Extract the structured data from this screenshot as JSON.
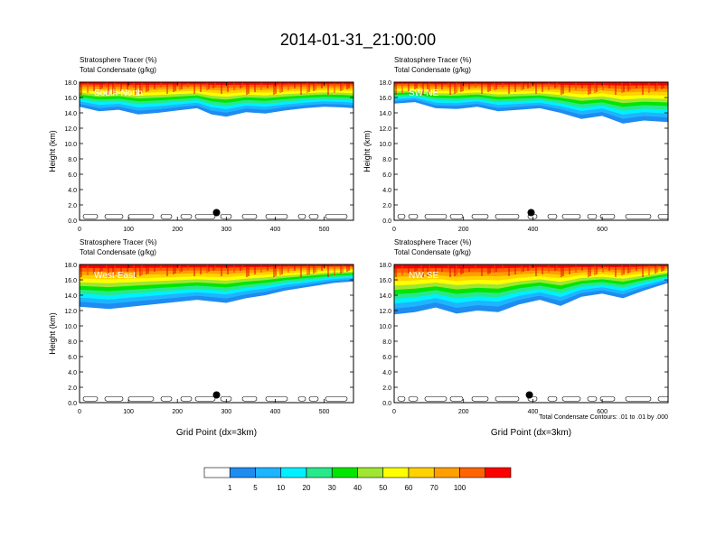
{
  "title": "2014-01-31_21:00:00",
  "footnote": "Total Condensate Contours: .01 to .01 by .000",
  "colorbar": {
    "colors": [
      "#ffffff",
      "#1e8cf0",
      "#1eb4ff",
      "#00f0ff",
      "#28e88c",
      "#00e600",
      "#a0e632",
      "#ffff00",
      "#ffd200",
      "#ffa000",
      "#ff6400",
      "#ff0000"
    ],
    "labels": [
      "1",
      "5",
      "10",
      "20",
      "30",
      "40",
      "50",
      "60",
      "70",
      "100"
    ]
  },
  "chart_data": [
    {
      "type": "heatmap",
      "subtitle1": "Stratosphere Tracer   (%)",
      "subtitle2": "Total Condensate   (g/kg)",
      "panel_label": "South-North",
      "xlabel": "",
      "ylabel": "Height (km)",
      "xlim": [
        0,
        560
      ],
      "ylim": [
        0,
        18
      ],
      "xticks": [
        0,
        100,
        200,
        300,
        400,
        500
      ],
      "yticks": [
        "0.0",
        "2.0",
        "4.0",
        "6.0",
        "8.0",
        "10.0",
        "12.0",
        "14.0",
        "16.0",
        "18.0"
      ],
      "marker": [
        280,
        1.0
      ],
      "tracer_base_km": [
        [
          0,
          14.8
        ],
        [
          40,
          14.2
        ],
        [
          80,
          14.4
        ],
        [
          120,
          13.8
        ],
        [
          160,
          14.0
        ],
        [
          200,
          14.3
        ],
        [
          240,
          14.6
        ],
        [
          270,
          13.8
        ],
        [
          300,
          13.5
        ],
        [
          340,
          14.1
        ],
        [
          380,
          13.9
        ],
        [
          420,
          14.3
        ],
        [
          460,
          14.6
        ],
        [
          500,
          14.8
        ],
        [
          540,
          14.7
        ],
        [
          560,
          14.6
        ]
      ]
    },
    {
      "type": "heatmap",
      "subtitle1": "Stratosphere Tracer   (%)",
      "subtitle2": "Total Condensate   (g/kg)",
      "panel_label": "SW-NE",
      "xlabel": "",
      "ylabel": "Height (km)",
      "xlim": [
        0,
        790
      ],
      "ylim": [
        0,
        18
      ],
      "xticks": [
        0,
        200,
        400,
        600
      ],
      "yticks": [
        "0.0",
        "2.0",
        "4.0",
        "6.0",
        "8.0",
        "10.0",
        "12.0",
        "14.0",
        "16.0",
        "18.0"
      ],
      "marker": [
        395,
        1.0
      ],
      "tracer_base_km": [
        [
          0,
          15.2
        ],
        [
          60,
          15.4
        ],
        [
          120,
          14.6
        ],
        [
          180,
          14.5
        ],
        [
          240,
          14.8
        ],
        [
          300,
          14.2
        ],
        [
          360,
          14.4
        ],
        [
          420,
          14.6
        ],
        [
          480,
          14.0
        ],
        [
          540,
          13.2
        ],
        [
          600,
          13.6
        ],
        [
          660,
          12.6
        ],
        [
          720,
          13.0
        ],
        [
          790,
          12.8
        ]
      ]
    },
    {
      "type": "heatmap",
      "subtitle1": "Stratosphere Tracer   (%)",
      "subtitle2": "Total Condensate   (g/kg)",
      "panel_label": "West-East",
      "xlabel": "Grid Point (dx=3km)",
      "ylabel": "Height (km)",
      "xlim": [
        0,
        560
      ],
      "ylim": [
        0,
        18
      ],
      "xticks": [
        0,
        100,
        200,
        300,
        400,
        500
      ],
      "yticks": [
        "0.0",
        "2.0",
        "4.0",
        "6.0",
        "8.0",
        "10.0",
        "12.0",
        "14.0",
        "16.0",
        "18.0"
      ],
      "marker": [
        280,
        1.0
      ],
      "tracer_base_km": [
        [
          0,
          12.5
        ],
        [
          60,
          12.2
        ],
        [
          120,
          12.6
        ],
        [
          180,
          13.0
        ],
        [
          240,
          13.4
        ],
        [
          300,
          13.0
        ],
        [
          340,
          13.6
        ],
        [
          380,
          14.0
        ],
        [
          420,
          14.6
        ],
        [
          480,
          15.2
        ],
        [
          520,
          15.6
        ],
        [
          560,
          15.8
        ]
      ]
    },
    {
      "type": "heatmap",
      "subtitle1": "Stratosphere Tracer   (%)",
      "subtitle2": "Total Condensate   (g/kg)",
      "panel_label": "NW-SE",
      "xlabel": "Grid Point (dx=3km)",
      "ylabel": "",
      "xlim": [
        0,
        790
      ],
      "ylim": [
        0,
        18
      ],
      "xticks": [
        0,
        200,
        400,
        600
      ],
      "yticks": [
        "0.0",
        "2.0",
        "4.0",
        "6.0",
        "8.0",
        "10.0",
        "12.0",
        "14.0",
        "16.0",
        "18.0"
      ],
      "marker": [
        390,
        1.0
      ],
      "tracer_base_km": [
        [
          0,
          11.5
        ],
        [
          60,
          11.8
        ],
        [
          120,
          12.4
        ],
        [
          180,
          11.6
        ],
        [
          240,
          12.0
        ],
        [
          300,
          11.8
        ],
        [
          360,
          12.8
        ],
        [
          420,
          13.4
        ],
        [
          480,
          12.6
        ],
        [
          540,
          13.8
        ],
        [
          600,
          14.2
        ],
        [
          660,
          13.6
        ],
        [
          720,
          14.6
        ],
        [
          790,
          15.6
        ]
      ]
    }
  ]
}
